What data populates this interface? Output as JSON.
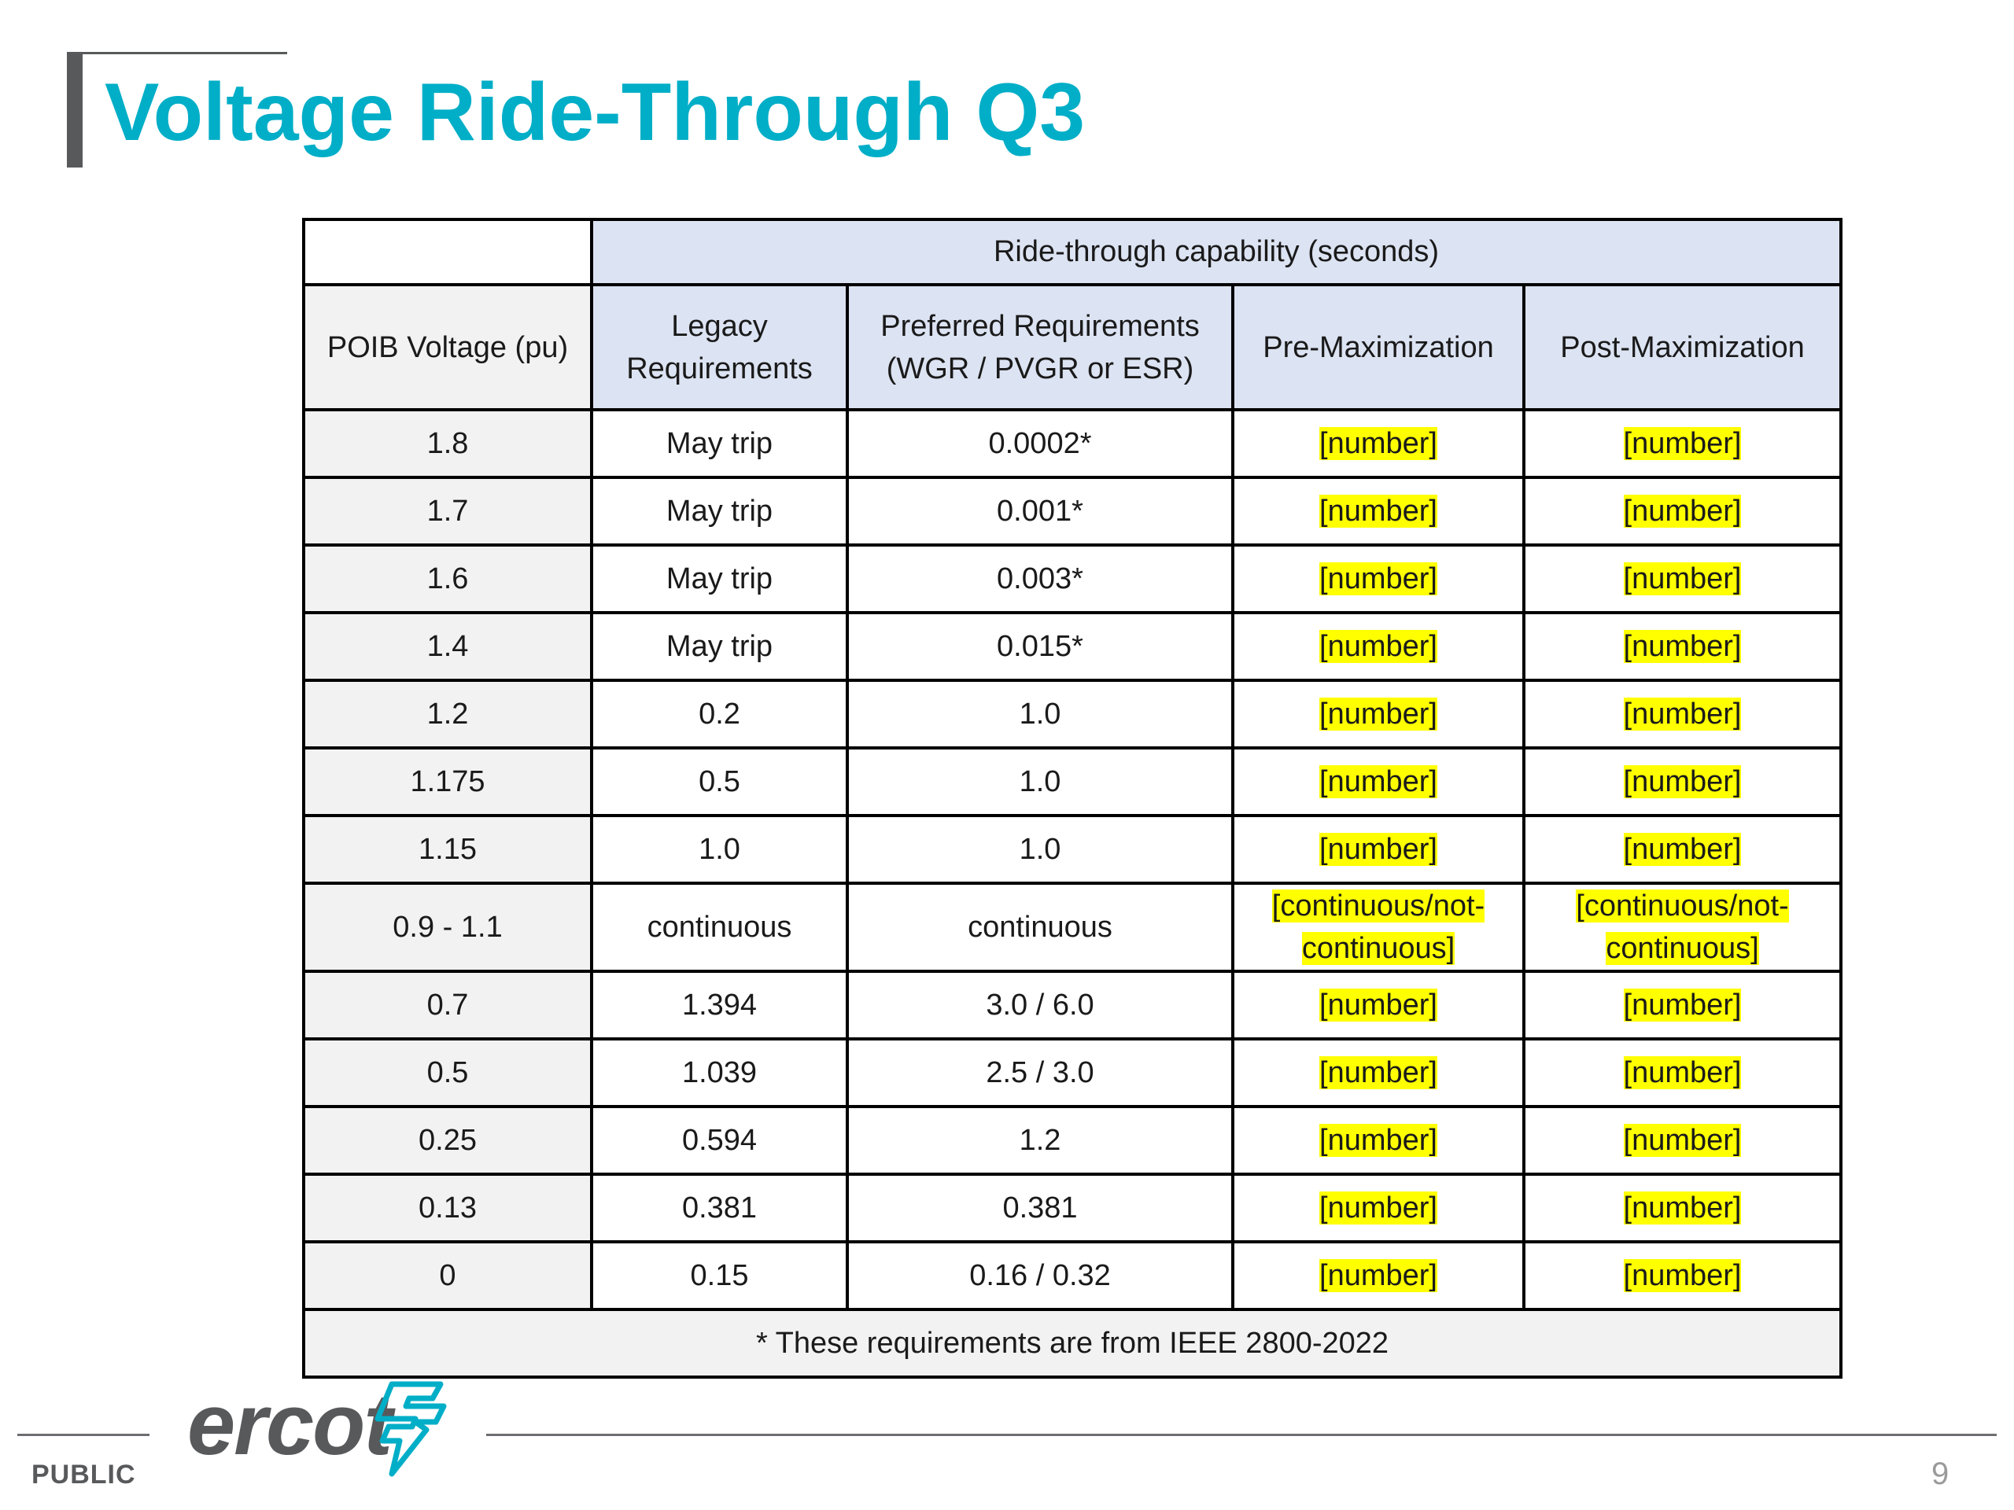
{
  "slide": {
    "title": "Voltage Ride-Through Q3",
    "footer_label": "PUBLIC",
    "page_number": "9",
    "logo_text": "ercot"
  },
  "table": {
    "span_header": "Ride-through capability (seconds)",
    "col_headers": {
      "poib": "POIB Voltage (pu)",
      "legacy_line1": "Legacy",
      "legacy_line2": "Requirements",
      "preferred_line1": "Preferred Requirements",
      "preferred_line2": "(WGR / PVGR or ESR)",
      "pre_max": "Pre-Maximization",
      "post_max": "Post-Maximization"
    },
    "rows": [
      {
        "voltage": "1.8",
        "legacy": "May trip",
        "preferred": "0.0002*",
        "pre": "[number]",
        "post": "[number]"
      },
      {
        "voltage": "1.7",
        "legacy": "May trip",
        "preferred": "0.001*",
        "pre": "[number]",
        "post": "[number]"
      },
      {
        "voltage": "1.6",
        "legacy": "May trip",
        "preferred": "0.003*",
        "pre": "[number]",
        "post": "[number]"
      },
      {
        "voltage": "1.4",
        "legacy": "May trip",
        "preferred": "0.015*",
        "pre": "[number]",
        "post": "[number]"
      },
      {
        "voltage": "1.2",
        "legacy": "0.2",
        "preferred": "1.0",
        "pre": "[number]",
        "post": "[number]"
      },
      {
        "voltage": "1.175",
        "legacy": "0.5",
        "preferred": "1.0",
        "pre": "[number]",
        "post": "[number]"
      },
      {
        "voltage": "1.15",
        "legacy": "1.0",
        "preferred": "1.0",
        "pre": "[number]",
        "post": "[number]"
      },
      {
        "voltage": "0.9 - 1.1",
        "legacy": "continuous",
        "preferred": "continuous",
        "pre_line1": "[continuous/not-",
        "pre_line2": "continuous]",
        "post_line1": "[continuous/not-",
        "post_line2": "continuous]"
      },
      {
        "voltage": "0.7",
        "legacy": "1.394",
        "preferred": "3.0 / 6.0",
        "pre": "[number]",
        "post": "[number]"
      },
      {
        "voltage": "0.5",
        "legacy": "1.039",
        "preferred": "2.5 / 3.0",
        "pre": "[number]",
        "post": "[number]"
      },
      {
        "voltage": "0.25",
        "legacy": "0.594",
        "preferred": "1.2",
        "pre": "[number]",
        "post": "[number]"
      },
      {
        "voltage": "0.13",
        "legacy": "0.381",
        "preferred": "0.381",
        "pre": "[number]",
        "post": "[number]"
      },
      {
        "voltage": "0",
        "legacy": "0.15",
        "preferred": "0.16 / 0.32",
        "pre": "[number]",
        "post": "[number]"
      }
    ],
    "footnote": "* These requirements are from IEEE 2800-2022"
  },
  "colors": {
    "title": "#00aec7",
    "header_fill": "#dce3f2",
    "voltage_fill": "#f2f2f2",
    "highlight": "#ffff00",
    "logo_gray": "#58595b",
    "logo_blue": "#00aec7"
  }
}
